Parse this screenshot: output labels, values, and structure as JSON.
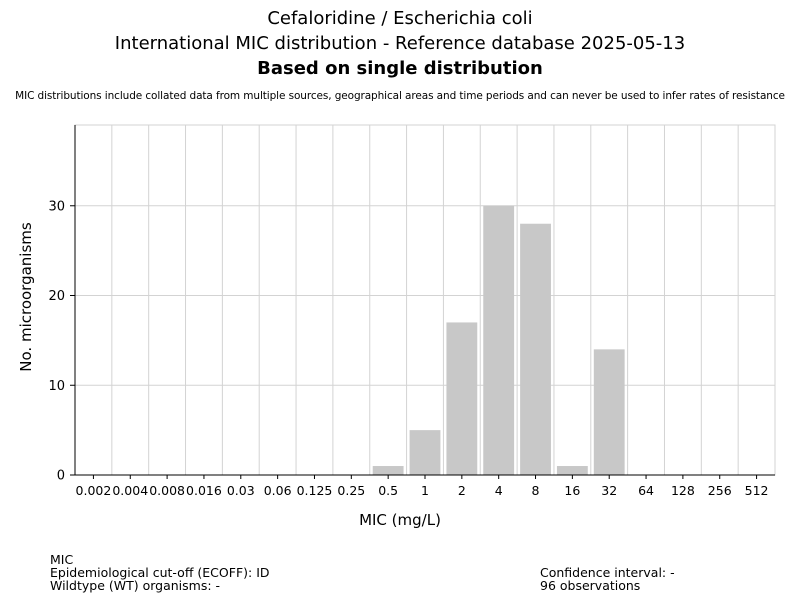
{
  "chart_data": {
    "type": "bar",
    "title": "Cefaloridine / Escherichia coli",
    "subtitle": "International MIC distribution - Reference database 2025-05-13",
    "subtitle2": "Based on single distribution",
    "note": "MIC distributions include collated data from multiple sources, geographical areas and time periods and can never be used to infer rates of resistance",
    "xlabel": "MIC (mg/L)",
    "ylabel": "No. microorganisms",
    "categories": [
      "0.002",
      "0.004",
      "0.008",
      "0.016",
      "0.03",
      "0.06",
      "0.125",
      "0.25",
      "0.5",
      "1",
      "2",
      "4",
      "8",
      "16",
      "32",
      "64",
      "128",
      "256",
      "512"
    ],
    "values": [
      0,
      0,
      0,
      0,
      0,
      0,
      0,
      0,
      1,
      5,
      17,
      30,
      28,
      1,
      14,
      0,
      0,
      0,
      0
    ],
    "ylim": [
      0,
      39
    ],
    "yticks": [
      0,
      10,
      20,
      30
    ],
    "grid": true,
    "bar_color": "#c8c8c8",
    "grid_color": "#d3d3d3"
  },
  "footer": {
    "line1": "MIC",
    "line2": "Epidemiological cut-off (ECOFF): ID",
    "line3": "Wildtype (WT) organisms:  -",
    "confidence": "Confidence interval: -",
    "observations": "96 observations"
  }
}
